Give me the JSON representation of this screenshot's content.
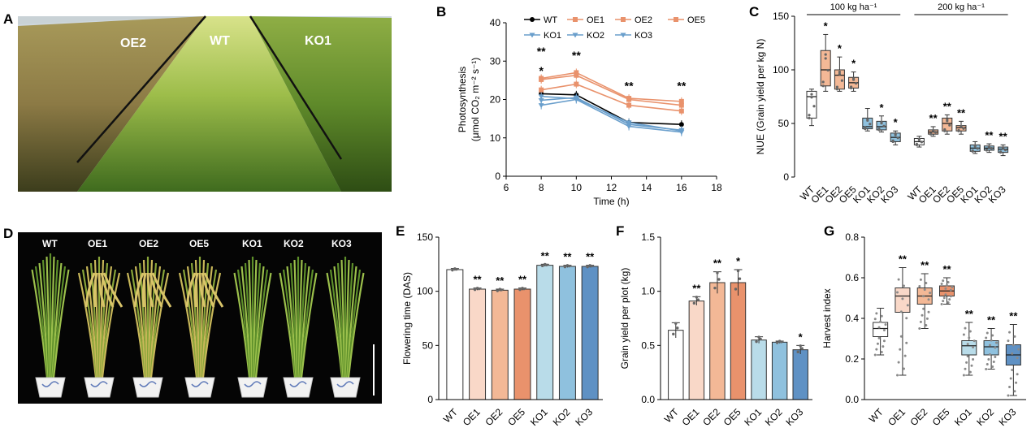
{
  "figure": {
    "panel_letters": [
      "A",
      "B",
      "C",
      "D",
      "E",
      "F",
      "G"
    ]
  },
  "photo_a": {
    "labels": [
      "OE2",
      "WT",
      "KO1"
    ]
  },
  "photo_d": {
    "labels": [
      "WT",
      "OE1",
      "OE2",
      "OE5",
      "KO1",
      "KO2",
      "KO3"
    ]
  },
  "colors": {
    "WT": "#ffffff",
    "OE1": "#f9d8c8",
    "OE2": "#f3b896",
    "OE5": "#e9926c",
    "KO1": "#b9dce9",
    "KO2": "#8fc1de",
    "KO3": "#5f91c4",
    "oe_line": "#e9926c",
    "ko_line": "#6a9fcc",
    "wt_line": "#000000",
    "oe_fill_c": "#f3b896",
    "ko_fill_c": "#8fc1de"
  },
  "chart_data": [
    {
      "panel": "B",
      "type": "line",
      "title": "",
      "xlabel": "Time (h)",
      "ylabel_line1": "Photosynthesis",
      "ylabel_line2": "(μmol CO₂ m⁻² s⁻¹)",
      "xlim": [
        6,
        18
      ],
      "ylim": [
        0,
        40
      ],
      "xticks": [
        6,
        8,
        10,
        12,
        14,
        16,
        18
      ],
      "yticks": [
        0,
        10,
        20,
        30,
        40
      ],
      "x": [
        8,
        10,
        13,
        16
      ],
      "series": [
        {
          "name": "WT",
          "group": "WT",
          "values": [
            21.5,
            21.2,
            14.0,
            13.5
          ]
        },
        {
          "name": "OE1",
          "group": "OE",
          "values": [
            25.2,
            26.3,
            20.0,
            18.5
          ]
        },
        {
          "name": "OE2",
          "group": "OE",
          "values": [
            22.5,
            24.0,
            18.5,
            17.0
          ]
        },
        {
          "name": "OE5",
          "group": "OE",
          "values": [
            25.5,
            27.0,
            20.3,
            19.5
          ]
        },
        {
          "name": "KO1",
          "group": "KO",
          "values": [
            18.5,
            20.0,
            13.0,
            11.5
          ]
        },
        {
          "name": "KO2",
          "group": "KO",
          "values": [
            19.8,
            20.5,
            13.5,
            12.0
          ]
        },
        {
          "name": "KO3",
          "group": "KO",
          "values": [
            20.8,
            20.2,
            14.0,
            11.8
          ]
        }
      ],
      "significance": [
        {
          "x": 8,
          "label": "**",
          "y": 31.5
        },
        {
          "x": 8,
          "label": "*",
          "y": 26.5
        },
        {
          "x": 10,
          "label": "**",
          "y": 30.5
        },
        {
          "x": 13,
          "label": "**",
          "y": 22.5
        },
        {
          "x": 16,
          "label": "**",
          "y": 22.5
        }
      ]
    },
    {
      "panel": "C",
      "type": "box",
      "ylabel": "NUE (Grain yield per kg N)",
      "ylim": [
        0,
        150
      ],
      "yticks": [
        0,
        50,
        100,
        150
      ],
      "group_labels": [
        "100 kg ha⁻¹",
        "200 kg ha⁻¹"
      ],
      "categories": [
        "WT",
        "OE1",
        "OE2",
        "OE5",
        "KO1",
        "KO2",
        "KO3",
        "WT",
        "OE1",
        "OE2",
        "OE5",
        "KO1",
        "KO2",
        "KO3"
      ],
      "boxes": [
        {
          "min": 48,
          "q1": 55,
          "median": 75,
          "q3": 80,
          "max": 82,
          "sig": ""
        },
        {
          "min": 80,
          "q1": 85,
          "median": 100,
          "q3": 118,
          "max": 133,
          "sig": "*"
        },
        {
          "min": 80,
          "q1": 82,
          "median": 95,
          "q3": 100,
          "max": 112,
          "sig": "*"
        },
        {
          "min": 80,
          "q1": 83,
          "median": 88,
          "q3": 93,
          "max": 98,
          "sig": "*"
        },
        {
          "min": 43,
          "q1": 45,
          "median": 47,
          "q3": 55,
          "max": 64,
          "sig": ""
        },
        {
          "min": 42,
          "q1": 44,
          "median": 47,
          "q3": 52,
          "max": 57,
          "sig": "*"
        },
        {
          "min": 30,
          "q1": 33,
          "median": 37,
          "q3": 41,
          "max": 43,
          "sig": "*"
        },
        {
          "min": 28,
          "q1": 30,
          "median": 33,
          "q3": 36,
          "max": 38,
          "sig": ""
        },
        {
          "min": 38,
          "q1": 40,
          "median": 42,
          "q3": 44,
          "max": 47,
          "sig": "**"
        },
        {
          "min": 40,
          "q1": 43,
          "median": 50,
          "q3": 55,
          "max": 58,
          "sig": "**"
        },
        {
          "min": 40,
          "q1": 43,
          "median": 46,
          "q3": 48,
          "max": 52,
          "sig": "**"
        },
        {
          "min": 22,
          "q1": 24,
          "median": 27,
          "q3": 30,
          "max": 33,
          "sig": ""
        },
        {
          "min": 23,
          "q1": 25,
          "median": 27,
          "q3": 29,
          "max": 31,
          "sig": "**"
        },
        {
          "min": 20,
          "q1": 23,
          "median": 26,
          "q3": 28,
          "max": 30,
          "sig": "**"
        }
      ]
    },
    {
      "panel": "E",
      "type": "bar",
      "ylabel": "Flowering time (DAS)",
      "ylim": [
        0,
        150
      ],
      "yticks": [
        0,
        50,
        100,
        150
      ],
      "categories": [
        "WT",
        "OE1",
        "OE2",
        "OE5",
        "KO1",
        "KO2",
        "KO3"
      ],
      "values": [
        120,
        102,
        101,
        102,
        124,
        123,
        123
      ],
      "errors": [
        1,
        1,
        1,
        1,
        1,
        1,
        1
      ],
      "significance": [
        "",
        "**",
        "**",
        "**",
        "**",
        "**",
        "**"
      ]
    },
    {
      "panel": "F",
      "type": "bar",
      "ylabel": "Grain yield per plot (kg)",
      "ylim": [
        0,
        1.5
      ],
      "yticks": [
        0.0,
        0.5,
        1.0,
        1.5
      ],
      "ytick_labels": [
        "0.0",
        "0.5",
        "1.0",
        "1.5"
      ],
      "categories": [
        "WT",
        "OE1",
        "OE2",
        "OE5",
        "KO1",
        "KO2",
        "KO3"
      ],
      "values": [
        0.64,
        0.91,
        1.08,
        1.08,
        0.55,
        0.53,
        0.46
      ],
      "errors": [
        0.07,
        0.04,
        0.1,
        0.12,
        0.03,
        0.01,
        0.04
      ],
      "significance": [
        "",
        "**",
        "**",
        "*",
        "",
        "",
        "*"
      ]
    },
    {
      "panel": "G",
      "type": "box",
      "ylabel": "Harvest index",
      "ylim": [
        0.0,
        0.8
      ],
      "yticks": [
        0.0,
        0.2,
        0.4,
        0.6,
        0.8
      ],
      "ytick_labels": [
        "0.0",
        "0.2",
        "0.4",
        "0.6",
        "0.8"
      ],
      "categories": [
        "WT",
        "OE1",
        "OE2",
        "OE5",
        "KO1",
        "KO2",
        "KO3"
      ],
      "boxes": [
        {
          "min": 0.22,
          "q1": 0.31,
          "median": 0.35,
          "q3": 0.38,
          "max": 0.45,
          "sig": ""
        },
        {
          "min": 0.12,
          "q1": 0.43,
          "median": 0.51,
          "q3": 0.55,
          "max": 0.65,
          "sig": "**"
        },
        {
          "min": 0.35,
          "q1": 0.47,
          "median": 0.51,
          "q3": 0.55,
          "max": 0.62,
          "sig": "**"
        },
        {
          "min": 0.47,
          "q1": 0.51,
          "median": 0.535,
          "q3": 0.56,
          "max": 0.6,
          "sig": "**"
        },
        {
          "min": 0.12,
          "q1": 0.22,
          "median": 0.265,
          "q3": 0.29,
          "max": 0.38,
          "sig": "**"
        },
        {
          "min": 0.15,
          "q1": 0.22,
          "median": 0.26,
          "q3": 0.29,
          "max": 0.35,
          "sig": "**"
        },
        {
          "min": 0.02,
          "q1": 0.17,
          "median": 0.22,
          "q3": 0.27,
          "max": 0.37,
          "sig": "**"
        }
      ]
    }
  ]
}
